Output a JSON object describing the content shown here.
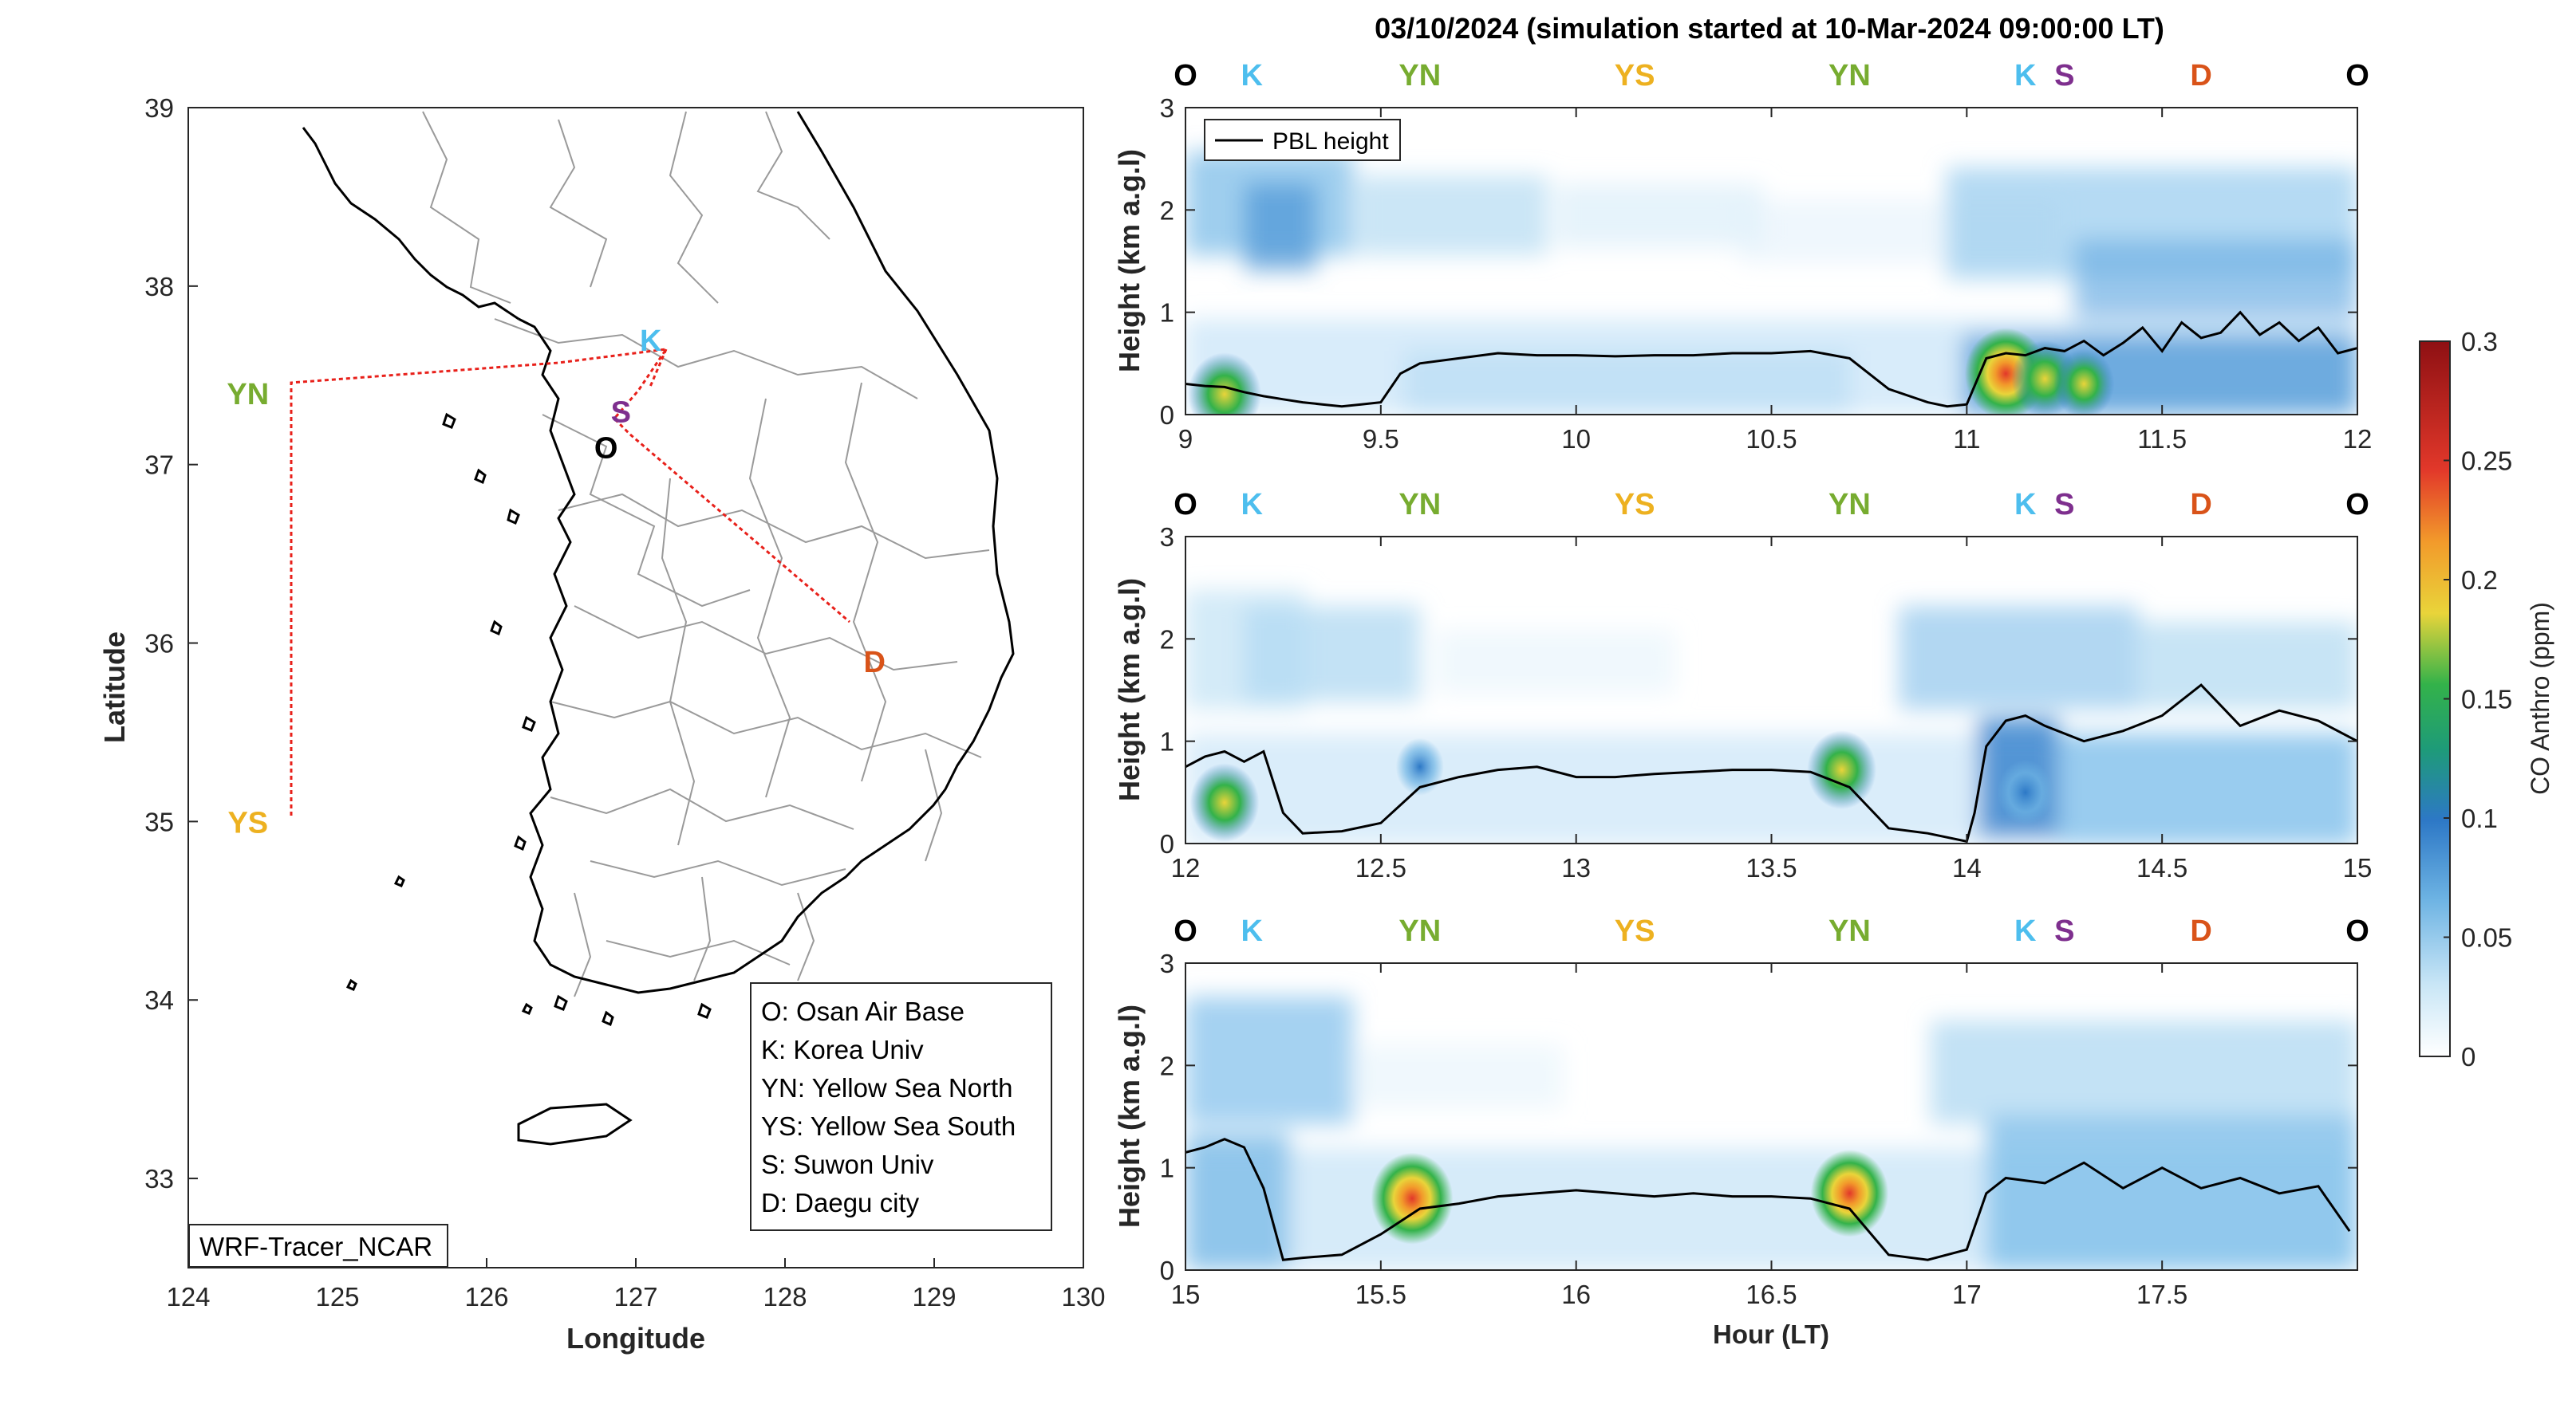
{
  "figure": {
    "title": "03/10/2024 (simulation started at 10-Mar-2024 09:00:00 LT)"
  },
  "map": {
    "xlabel": "Longitude",
    "ylabel": "Latitude",
    "xlim": [
      124,
      130
    ],
    "ylim": [
      32.5,
      39
    ],
    "xticks": [
      "124",
      "125",
      "126",
      "127",
      "128",
      "129",
      "130"
    ],
    "yticks": [
      "33",
      "34",
      "35",
      "36",
      "37",
      "38",
      "39"
    ],
    "sites": [
      {
        "code": "O",
        "lon": 126.8,
        "lat": 37.1,
        "color": "#000000"
      },
      {
        "code": "K",
        "lon": 127.1,
        "lat": 37.7,
        "color": "#4DBEEE"
      },
      {
        "code": "YN",
        "lon": 124.4,
        "lat": 37.4,
        "color": "#77AC30"
      },
      {
        "code": "YS",
        "lon": 124.4,
        "lat": 35.0,
        "color": "#EDB120"
      },
      {
        "code": "S",
        "lon": 126.9,
        "lat": 37.3,
        "color": "#7E2F8E"
      },
      {
        "code": "D",
        "lon": 128.6,
        "lat": 35.9,
        "color": "#D95319"
      }
    ],
    "legend": [
      "O: Osan Air Base",
      "K: Korea Univ",
      "YN: Yellow Sea North",
      "YS: Yellow Sea South",
      "S: Suwon Univ",
      "D: Daegu city"
    ],
    "model_label": "WRF-Tracer_NCAR",
    "flight_track_color": "#E8201A"
  },
  "chart_data": [
    {
      "type": "heatmap",
      "panel": "top",
      "ylabel": "Height (km a.g.l)",
      "xlim": [
        9,
        12
      ],
      "ylim": [
        0,
        3
      ],
      "xticks": [
        "9",
        "9.5",
        "10",
        "10.5",
        "11",
        "11.5",
        "12"
      ],
      "yticks": [
        "0",
        "1",
        "2",
        "3"
      ],
      "legend": "PBL height",
      "site_labels": [
        {
          "code": "O",
          "x": 9.0
        },
        {
          "code": "K",
          "x": 9.17
        },
        {
          "code": "YN",
          "x": 9.6
        },
        {
          "code": "YS",
          "x": 10.15
        },
        {
          "code": "YN",
          "x": 10.7
        },
        {
          "code": "K",
          "x": 11.15
        },
        {
          "code": "S",
          "x": 11.25
        },
        {
          "code": "D",
          "x": 11.6
        },
        {
          "code": "O",
          "x": 12.0
        }
      ],
      "pbl": {
        "x": [
          9.0,
          9.05,
          9.1,
          9.15,
          9.2,
          9.25,
          9.3,
          9.35,
          9.4,
          9.45,
          9.5,
          9.55,
          9.6,
          9.7,
          9.8,
          9.9,
          10.0,
          10.1,
          10.2,
          10.3,
          10.4,
          10.5,
          10.6,
          10.7,
          10.8,
          10.9,
          10.95,
          11.0,
          11.05,
          11.1,
          11.15,
          11.2,
          11.25,
          11.3,
          11.35,
          11.4,
          11.45,
          11.5,
          11.55,
          11.6,
          11.65,
          11.7,
          11.75,
          11.8,
          11.85,
          11.9,
          11.95,
          12.0
        ],
        "y": [
          0.3,
          0.28,
          0.27,
          0.22,
          0.18,
          0.15,
          0.12,
          0.1,
          0.08,
          0.1,
          0.12,
          0.4,
          0.5,
          0.55,
          0.6,
          0.58,
          0.58,
          0.57,
          0.58,
          0.58,
          0.6,
          0.6,
          0.62,
          0.55,
          0.25,
          0.12,
          0.08,
          0.1,
          0.55,
          0.6,
          0.58,
          0.65,
          0.62,
          0.72,
          0.58,
          0.7,
          0.85,
          0.62,
          0.9,
          0.75,
          0.8,
          1.0,
          0.78,
          0.9,
          0.72,
          0.85,
          0.6,
          0.65
        ]
      },
      "hotspots": [
        {
          "x": 9.1,
          "y": 0.2,
          "v": 0.18
        },
        {
          "x": 11.1,
          "y": 0.4,
          "v": 0.22
        },
        {
          "x": 11.2,
          "y": 0.35,
          "v": 0.15
        },
        {
          "x": 11.3,
          "y": 0.3,
          "v": 0.12
        }
      ]
    },
    {
      "type": "heatmap",
      "panel": "middle",
      "ylabel": "Height (km a.g.l)",
      "xlim": [
        12,
        15
      ],
      "ylim": [
        0,
        3
      ],
      "xticks": [
        "12",
        "12.5",
        "13",
        "13.5",
        "14",
        "14.5",
        "15"
      ],
      "yticks": [
        "0",
        "1",
        "2",
        "3"
      ],
      "site_labels": [
        {
          "code": "O",
          "x": 12.0
        },
        {
          "code": "K",
          "x": 12.17
        },
        {
          "code": "YN",
          "x": 12.6
        },
        {
          "code": "YS",
          "x": 13.15
        },
        {
          "code": "YN",
          "x": 13.7
        },
        {
          "code": "K",
          "x": 14.15
        },
        {
          "code": "S",
          "x": 14.25
        },
        {
          "code": "D",
          "x": 14.6
        },
        {
          "code": "O",
          "x": 15.0
        }
      ],
      "pbl": {
        "x": [
          12.0,
          12.05,
          12.1,
          12.15,
          12.2,
          12.25,
          12.3,
          12.4,
          12.5,
          12.6,
          12.7,
          12.8,
          12.9,
          13.0,
          13.1,
          13.2,
          13.3,
          13.4,
          13.5,
          13.6,
          13.7,
          13.75,
          13.8,
          13.9,
          14.0,
          14.02,
          14.05,
          14.1,
          14.15,
          14.2,
          14.3,
          14.4,
          14.5,
          14.6,
          14.7,
          14.8,
          14.9,
          15.0
        ],
        "y": [
          0.75,
          0.85,
          0.9,
          0.8,
          0.9,
          0.3,
          0.1,
          0.12,
          0.2,
          0.55,
          0.65,
          0.72,
          0.75,
          0.65,
          0.65,
          0.68,
          0.7,
          0.72,
          0.72,
          0.7,
          0.55,
          0.35,
          0.15,
          0.1,
          0.02,
          0.3,
          0.95,
          1.2,
          1.25,
          1.15,
          1.0,
          1.1,
          1.25,
          1.55,
          1.15,
          1.3,
          1.2,
          1.0
        ]
      },
      "hotspots": [
        {
          "x": 12.1,
          "y": 0.4,
          "v": 0.16
        },
        {
          "x": 12.6,
          "y": 0.75,
          "v": 0.06
        },
        {
          "x": 13.68,
          "y": 0.72,
          "v": 0.16
        },
        {
          "x": 14.15,
          "y": 0.5,
          "v": 0.1
        }
      ]
    },
    {
      "type": "heatmap",
      "panel": "bottom",
      "ylabel": "Height (km a.g.l)",
      "xlabel": "Hour (LT)",
      "xlim": [
        15,
        18
      ],
      "ylim": [
        0,
        3
      ],
      "xticks": [
        "15",
        "15.5",
        "16",
        "16.5",
        "17",
        "17.5"
      ],
      "yticks": [
        "0",
        "1",
        "2",
        "3"
      ],
      "colorbar": {
        "label": "CO Anthro (ppm)",
        "range": [
          0,
          0.3
        ],
        "ticks": [
          "0",
          "0.05",
          "0.1",
          "0.15",
          "0.2",
          "0.25",
          "0.3"
        ]
      },
      "site_labels": [
        {
          "code": "O",
          "x": 15.0
        },
        {
          "code": "K",
          "x": 15.17
        },
        {
          "code": "YN",
          "x": 15.6
        },
        {
          "code": "YS",
          "x": 16.15
        },
        {
          "code": "YN",
          "x": 16.7
        },
        {
          "code": "K",
          "x": 17.15
        },
        {
          "code": "S",
          "x": 17.25
        },
        {
          "code": "D",
          "x": 17.6
        },
        {
          "code": "O",
          "x": 18.0
        }
      ],
      "pbl": {
        "x": [
          15.0,
          15.05,
          15.1,
          15.15,
          15.2,
          15.25,
          15.3,
          15.4,
          15.5,
          15.6,
          15.7,
          15.8,
          15.9,
          16.0,
          16.1,
          16.2,
          16.3,
          16.4,
          16.5,
          16.6,
          16.7,
          16.8,
          16.9,
          17.0,
          17.05,
          17.1,
          17.2,
          17.3,
          17.4,
          17.5,
          17.6,
          17.7,
          17.8,
          17.9,
          17.98
        ],
        "y": [
          1.15,
          1.2,
          1.28,
          1.2,
          0.8,
          0.1,
          0.12,
          0.15,
          0.35,
          0.6,
          0.65,
          0.72,
          0.75,
          0.78,
          0.75,
          0.72,
          0.75,
          0.72,
          0.72,
          0.7,
          0.6,
          0.15,
          0.1,
          0.2,
          0.75,
          0.9,
          0.85,
          1.05,
          0.8,
          1.0,
          0.8,
          0.9,
          0.75,
          0.82,
          0.38
        ]
      },
      "hotspots": [
        {
          "x": 15.58,
          "y": 0.7,
          "v": 0.22
        },
        {
          "x": 16.7,
          "y": 0.75,
          "v": 0.2
        }
      ]
    }
  ]
}
